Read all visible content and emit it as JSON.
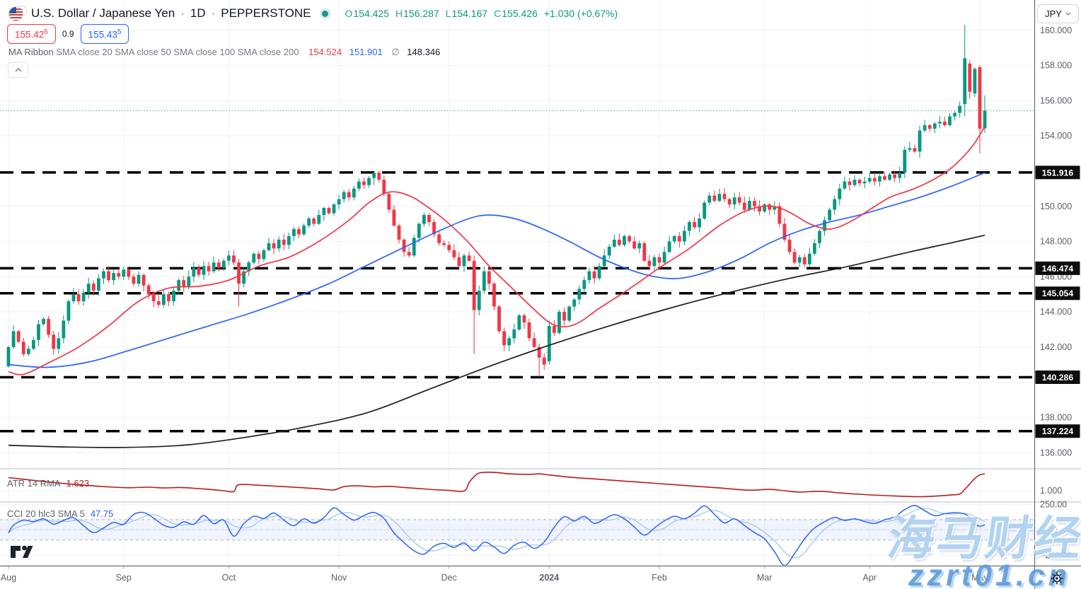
{
  "header": {
    "symbol_title": "U.S. Dollar / Japanese Yen",
    "separator": "·",
    "timeframe": "1D",
    "exchange": "PEPPERSTONE",
    "ohlc": {
      "o_label": "O",
      "o": "154.425",
      "h_label": "H",
      "h": "156.287",
      "l_label": "L",
      "l": "154.167",
      "c_label": "C",
      "c": "155.426",
      "change": "+1.030 (+0.67%)"
    },
    "sell_price": "155.42",
    "sell_sup": "6",
    "spread": "0.9",
    "buy_price": "155.43",
    "buy_sup": "5"
  },
  "indicators": {
    "ma_ribbon": {
      "label": "MA Ribbon",
      "params": "SMA close 20 SMA close 50 SMA close 100 SMA close 200",
      "value_sma20": "154.524",
      "value_sma50": "151.901",
      "avg_symbol": "∅",
      "avg_value": "148.346"
    },
    "atr": {
      "label": "ATR 14 RMA",
      "value": "1.623"
    },
    "cci": {
      "label": "CCI 20 hlc3 SMA 5",
      "value": "47.75"
    }
  },
  "price_axis": {
    "currency": "JPY",
    "labels": [
      "160.000",
      "158.000",
      "156.000",
      "154.000",
      "150.000",
      "148.000",
      "146.000",
      "144.000",
      "142.000",
      "138.000",
      "136.000"
    ],
    "label_prices": [
      160,
      158,
      156,
      154,
      150,
      148,
      146,
      144,
      142,
      138,
      136
    ],
    "badges": [
      "151.916",
      "146.474",
      "145.054",
      "140.286",
      "137.224"
    ],
    "atr_labels": [
      "1.000"
    ],
    "cci_labels": [
      "250.00",
      "0.00",
      "−250.00"
    ]
  },
  "time_axis": {
    "labels": [
      "Aug",
      "Sep",
      "Oct",
      "Nov",
      "Dec",
      "2024",
      "Feb",
      "Mar",
      "Apr",
      "May"
    ]
  },
  "watermark": {
    "cn_text": "海马财经",
    "url_text": "zzrt01.cn"
  },
  "colors": {
    "up": "#089981",
    "down": "#f23645",
    "sma20": "#f23645",
    "sma50": "#2962ff",
    "sma200": "#1b1f27",
    "atr_line": "#b71c1c",
    "cci_line": "#2962ff",
    "cci_sma": "#9fc2f0",
    "level": "#000000",
    "price_line": "#089981",
    "grid": "#eef1f6",
    "axis_text": "#5d6069",
    "pane_sep": "#d1d4dc",
    "axis_border": "#6a6e79",
    "badge_bg": "#0d0d0d",
    "badge_text": "#ffffff",
    "cci_band": "rgba(41,98,255,0.07)",
    "band_edge": "#a9b0bb"
  },
  "chart_data": {
    "type": "candlestick",
    "symbol": "USDJPY",
    "timeframe": "1D",
    "title": "U.S. Dollar / Japanese Yen · 1D · PEPPERSTONE",
    "ylim_main": [
      135.2,
      161.7
    ],
    "grid_step": 2,
    "current_price": 155.426,
    "levels": [
      151.916,
      146.474,
      145.054,
      140.286,
      137.224
    ],
    "month_starts": [
      0,
      23,
      44,
      66,
      88,
      108,
      130,
      151,
      172,
      194
    ],
    "open_first": 140.9,
    "closes": [
      142.0,
      142.9,
      142.3,
      141.6,
      141.9,
      142.4,
      143.3,
      143.6,
      142.7,
      141.9,
      142.5,
      143.5,
      144.6,
      145.0,
      144.6,
      145.1,
      145.6,
      145.2,
      145.9,
      146.3,
      145.8,
      146.2,
      146.0,
      146.4,
      146.0,
      145.6,
      146.1,
      145.5,
      145.0,
      144.6,
      144.4,
      145.0,
      144.6,
      145.2,
      145.8,
      145.4,
      146.0,
      146.5,
      146.1,
      146.6,
      146.3,
      146.8,
      146.5,
      146.9,
      147.2,
      146.8,
      145.6,
      146.3,
      146.8,
      147.3,
      147.0,
      147.5,
      147.9,
      147.6,
      148.1,
      147.8,
      148.3,
      148.7,
      148.4,
      148.9,
      149.3,
      149.0,
      149.5,
      149.9,
      149.6,
      150.1,
      150.4,
      150.8,
      150.5,
      151.0,
      151.4,
      151.2,
      151.6,
      151.9,
      151.5,
      150.7,
      149.8,
      148.9,
      148.1,
      147.4,
      147.2,
      148.2,
      149.0,
      149.5,
      149.1,
      148.4,
      147.9,
      147.8,
      147.5,
      147.1,
      146.6,
      147.2,
      146.9,
      144.1,
      145.2,
      146.3,
      145.6,
      144.3,
      142.9,
      142.1,
      142.5,
      143.0,
      143.8,
      143.4,
      142.5,
      142.0,
      141.4,
      141.0,
      143.2,
      142.8,
      144.0,
      143.5,
      144.3,
      144.7,
      145.3,
      145.8,
      146.3,
      145.9,
      146.6,
      147.2,
      147.7,
      148.1,
      147.8,
      148.3,
      148.0,
      147.6,
      147.9,
      146.9,
      146.6,
      147.1,
      146.8,
      147.4,
      148.0,
      148.3,
      148.0,
      148.6,
      149.1,
      148.8,
      149.3,
      150.2,
      150.6,
      150.3,
      150.7,
      150.4,
      150.1,
      150.5,
      150.2,
      149.8,
      150.3,
      150.0,
      149.7,
      150.1,
      149.8,
      150.0,
      149.0,
      148.1,
      147.4,
      146.8,
      147.1,
      146.7,
      147.3,
      147.9,
      148.6,
      149.2,
      149.8,
      150.4,
      151.0,
      151.4,
      151.2,
      151.5,
      151.3,
      151.4,
      151.6,
      151.4,
      151.7,
      151.5,
      151.8,
      151.6,
      151.9,
      153.2,
      153.3,
      153.1,
      154.3,
      154.6,
      154.4,
      154.7,
      154.8,
      154.6,
      155.1,
      155.3,
      155.7,
      158.4,
      156.5,
      157.8,
      154.4,
      155.426
    ],
    "overrides": {
      "46": [
        146.8,
        147.0,
        144.3,
        145.6
      ],
      "73": [
        151.6,
        151.92,
        151.2,
        151.9
      ],
      "93": [
        146.9,
        147.2,
        141.6,
        144.1
      ],
      "106": [
        142.0,
        142.2,
        140.3,
        141.4
      ],
      "108": [
        141.2,
        143.5,
        141.0,
        143.2
      ],
      "159": [
        147.1,
        147.3,
        146.5,
        146.7
      ],
      "179": [
        151.9,
        153.4,
        151.6,
        153.2
      ],
      "191": [
        155.8,
        160.3,
        155.1,
        158.4
      ],
      "192": [
        158.1,
        158.3,
        156.1,
        156.5
      ],
      "193": [
        156.4,
        157.9,
        156.2,
        157.8
      ],
      "194": [
        157.9,
        158.0,
        153.0,
        154.4
      ],
      "195": [
        154.425,
        156.287,
        154.167,
        155.426
      ]
    },
    "sma20": [
      [
        0,
        140.6
      ],
      [
        3,
        140.45
      ],
      [
        8,
        141.1
      ],
      [
        14,
        142.0
      ],
      [
        20,
        143.2
      ],
      [
        26,
        144.6
      ],
      [
        32,
        145.35
      ],
      [
        38,
        145.45
      ],
      [
        44,
        145.8
      ],
      [
        50,
        146.6
      ],
      [
        56,
        147.1
      ],
      [
        62,
        148.0
      ],
      [
        68,
        149.2
      ],
      [
        72,
        150.2
      ],
      [
        76,
        150.8
      ],
      [
        80,
        150.6
      ],
      [
        84,
        149.9
      ],
      [
        88,
        149.0
      ],
      [
        92,
        147.9
      ],
      [
        96,
        146.6
      ],
      [
        100,
        145.5
      ],
      [
        104,
        144.4
      ],
      [
        108,
        143.4
      ],
      [
        111,
        143.15
      ],
      [
        114,
        143.4
      ],
      [
        118,
        144.2
      ],
      [
        124,
        145.3
      ],
      [
        130,
        146.5
      ],
      [
        136,
        147.6
      ],
      [
        142,
        148.9
      ],
      [
        147,
        149.7
      ],
      [
        151,
        150.0
      ],
      [
        154,
        149.9
      ],
      [
        157,
        149.5
      ],
      [
        160,
        149.0
      ],
      [
        164,
        148.7
      ],
      [
        168,
        149.1
      ],
      [
        172,
        149.8
      ],
      [
        176,
        150.5
      ],
      [
        180,
        150.9
      ],
      [
        184,
        151.4
      ],
      [
        188,
        152.1
      ],
      [
        191,
        152.9
      ],
      [
        193,
        153.6
      ],
      [
        195,
        154.524
      ]
    ],
    "sma50": [
      [
        0,
        141.0
      ],
      [
        8,
        140.85
      ],
      [
        16,
        141.15
      ],
      [
        24,
        141.8
      ],
      [
        32,
        142.5
      ],
      [
        40,
        143.2
      ],
      [
        48,
        143.9
      ],
      [
        56,
        144.7
      ],
      [
        64,
        145.6
      ],
      [
        72,
        146.7
      ],
      [
        80,
        147.8
      ],
      [
        86,
        148.6
      ],
      [
        92,
        149.3
      ],
      [
        96,
        149.5
      ],
      [
        101,
        149.3
      ],
      [
        106,
        148.8
      ],
      [
        112,
        148.0
      ],
      [
        118,
        147.1
      ],
      [
        124,
        146.4
      ],
      [
        129,
        146.0
      ],
      [
        134,
        145.9
      ],
      [
        140,
        146.3
      ],
      [
        146,
        147.0
      ],
      [
        152,
        147.9
      ],
      [
        158,
        148.6
      ],
      [
        164,
        149.1
      ],
      [
        170,
        149.5
      ],
      [
        176,
        150.0
      ],
      [
        182,
        150.5
      ],
      [
        188,
        151.1
      ],
      [
        192,
        151.55
      ],
      [
        195,
        151.901
      ]
    ],
    "sma200": [
      [
        0,
        136.42
      ],
      [
        12,
        136.32
      ],
      [
        24,
        136.3
      ],
      [
        36,
        136.45
      ],
      [
        48,
        136.9
      ],
      [
        60,
        137.5
      ],
      [
        72,
        138.3
      ],
      [
        84,
        139.6
      ],
      [
        96,
        140.9
      ],
      [
        108,
        142.1
      ],
      [
        120,
        143.2
      ],
      [
        132,
        144.2
      ],
      [
        144,
        145.1
      ],
      [
        156,
        145.9
      ],
      [
        168,
        146.6
      ],
      [
        180,
        147.4
      ],
      [
        188,
        147.9
      ],
      [
        195,
        148.35
      ]
    ],
    "atr_series": [
      [
        0,
        1.48
      ],
      [
        4,
        1.4
      ],
      [
        8,
        1.32
      ],
      [
        12,
        1.25
      ],
      [
        16,
        1.19
      ],
      [
        20,
        1.14
      ],
      [
        24,
        1.11
      ],
      [
        28,
        1.13
      ],
      [
        31,
        1.1
      ],
      [
        34,
        1.12
      ],
      [
        37,
        1.09
      ],
      [
        40,
        1.05
      ],
      [
        43,
        1.0
      ],
      [
        45,
        0.97
      ],
      [
        46,
        1.22
      ],
      [
        50,
        1.2
      ],
      [
        54,
        1.16
      ],
      [
        58,
        1.12
      ],
      [
        62,
        1.07
      ],
      [
        65,
        1.03
      ],
      [
        67,
        1.15
      ],
      [
        70,
        1.18
      ],
      [
        73,
        1.14
      ],
      [
        76,
        1.16
      ],
      [
        79,
        1.12
      ],
      [
        82,
        1.08
      ],
      [
        85,
        1.04
      ],
      [
        88,
        1.01
      ],
      [
        91,
        0.99
      ],
      [
        92,
        1.3
      ],
      [
        93,
        1.52
      ],
      [
        94,
        1.65
      ],
      [
        96,
        1.68
      ],
      [
        98,
        1.66
      ],
      [
        100,
        1.62
      ],
      [
        104,
        1.6
      ],
      [
        106,
        1.62
      ],
      [
        108,
        1.58
      ],
      [
        112,
        1.5
      ],
      [
        118,
        1.42
      ],
      [
        124,
        1.34
      ],
      [
        130,
        1.26
      ],
      [
        136,
        1.18
      ],
      [
        142,
        1.1
      ],
      [
        148,
        1.02
      ],
      [
        152,
        1.05
      ],
      [
        155,
        1.0
      ],
      [
        158,
        0.95
      ],
      [
        162,
        0.98
      ],
      [
        166,
        0.92
      ],
      [
        170,
        0.87
      ],
      [
        174,
        0.83
      ],
      [
        178,
        0.8
      ],
      [
        182,
        0.78
      ],
      [
        185,
        0.8
      ],
      [
        188,
        0.84
      ],
      [
        190,
        0.88
      ],
      [
        191,
        1.05
      ],
      [
        192,
        1.25
      ],
      [
        193,
        1.45
      ],
      [
        194,
        1.58
      ],
      [
        195,
        1.623
      ]
    ],
    "atr_value": 1.623,
    "cci_series": [
      [
        0,
        -30
      ],
      [
        1,
        45
      ],
      [
        3,
        95
      ],
      [
        5,
        80
      ],
      [
        7,
        108
      ],
      [
        9,
        55
      ],
      [
        11,
        92
      ],
      [
        13,
        118
      ],
      [
        15,
        40
      ],
      [
        17,
        -28
      ],
      [
        19,
        18
      ],
      [
        21,
        72
      ],
      [
        23,
        55
      ],
      [
        25,
        150
      ],
      [
        27,
        170
      ],
      [
        29,
        115
      ],
      [
        31,
        45
      ],
      [
        33,
        25
      ],
      [
        35,
        78
      ],
      [
        37,
        55
      ],
      [
        39,
        140
      ],
      [
        41,
        60
      ],
      [
        43,
        95
      ],
      [
        45,
        -62
      ],
      [
        47,
        60
      ],
      [
        49,
        132
      ],
      [
        51,
        112
      ],
      [
        53,
        165
      ],
      [
        55,
        95
      ],
      [
        57,
        40
      ],
      [
        59,
        108
      ],
      [
        61,
        65
      ],
      [
        63,
        120
      ],
      [
        65,
        215
      ],
      [
        67,
        150
      ],
      [
        69,
        95
      ],
      [
        71,
        140
      ],
      [
        73,
        170
      ],
      [
        75,
        110
      ],
      [
        77,
        -30
      ],
      [
        79,
        -125
      ],
      [
        81,
        -205
      ],
      [
        83,
        -238
      ],
      [
        85,
        -160
      ],
      [
        87,
        -132
      ],
      [
        89,
        -172
      ],
      [
        91,
        -128
      ],
      [
        93,
        -205
      ],
      [
        95,
        -122
      ],
      [
        97,
        -168
      ],
      [
        99,
        -232
      ],
      [
        101,
        -152
      ],
      [
        103,
        -122
      ],
      [
        105,
        -182
      ],
      [
        107,
        -120
      ],
      [
        109,
        25
      ],
      [
        111,
        128
      ],
      [
        113,
        88
      ],
      [
        115,
        132
      ],
      [
        117,
        62
      ],
      [
        119,
        105
      ],
      [
        121,
        148
      ],
      [
        123,
        108
      ],
      [
        125,
        28
      ],
      [
        127,
        -52
      ],
      [
        129,
        18
      ],
      [
        131,
        88
      ],
      [
        133,
        132
      ],
      [
        135,
        108
      ],
      [
        137,
        162
      ],
      [
        139,
        235
      ],
      [
        141,
        152
      ],
      [
        143,
        68
      ],
      [
        145,
        108
      ],
      [
        147,
        42
      ],
      [
        149,
        -28
      ],
      [
        151,
        -88
      ],
      [
        153,
        -215
      ],
      [
        155,
        -348
      ],
      [
        157,
        -232
      ],
      [
        159,
        -88
      ],
      [
        161,
        18
      ],
      [
        163,
        78
      ],
      [
        165,
        122
      ],
      [
        167,
        92
      ],
      [
        169,
        108
      ],
      [
        171,
        82
      ],
      [
        173,
        62
      ],
      [
        175,
        98
      ],
      [
        177,
        128
      ],
      [
        179,
        198
      ],
      [
        181,
        238
      ],
      [
        183,
        188
      ],
      [
        185,
        138
      ],
      [
        187,
        158
      ],
      [
        189,
        168
      ],
      [
        191,
        155
      ],
      [
        192,
        120
      ],
      [
        193,
        60
      ],
      [
        194,
        35
      ],
      [
        195,
        48
      ]
    ],
    "cci_value": 47.75,
    "cci_band": {
      "upper": 100,
      "lower": -100
    },
    "cci_axis_range": [
      -250,
      250
    ],
    "atr_axis_tick": 1.0
  }
}
